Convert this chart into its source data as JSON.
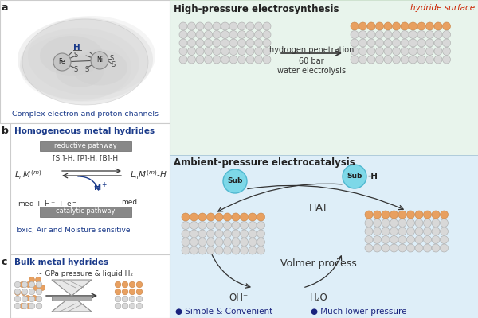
{
  "bg_white": "#ffffff",
  "bg_green": "#e8f4ec",
  "bg_blue": "#deeef8",
  "color_blue_title": "#1a3a8a",
  "color_red": "#cc2200",
  "color_dark": "#333333",
  "color_gray_box": "#888888",
  "color_orange": "#e8a060",
  "atom_gray": "#d8d8d8",
  "atom_orange": "#e8a060",
  "atom_outline": "#aaaaaa",
  "atom_orange_outline": "#c88040",
  "color_teal_fill": "#7dd8e8",
  "color_teal_edge": "#50b8d0",
  "color_navy": "#1a237e",
  "text_hp": "High-pressure electrosynthesis",
  "text_hydride": "hydride surface",
  "text_h_pen": "hydrogen penetration",
  "text_60bar": "60 bar",
  "text_water": "water electrolysis",
  "text_complex": "Complex electron and proton channels",
  "text_homo": "Homogeneous metal hydrides",
  "text_reductive": "reductive pathway",
  "text_silph": "[Si]-H, [P]-H, [B]-H",
  "text_catalytic": "catalytic pathway",
  "text_toxic": "Toxic; Air and Moisture sensitive",
  "text_bulk": "Bulk metal hydrides",
  "text_gpa": "~ GPa pressure & liquid H₂",
  "text_ap": "Ambient-pressure electrocatalysis",
  "text_hat": "HAT",
  "text_volmer": "Volmer process",
  "text_oh": "OH⁻",
  "text_h2o": "H₂O",
  "text_sub": "Sub",
  "text_simple": "● Simple & Convenient",
  "text_lower": "● Much lower pressure",
  "figsize": [
    6.0,
    4.0
  ],
  "dpi": 100
}
